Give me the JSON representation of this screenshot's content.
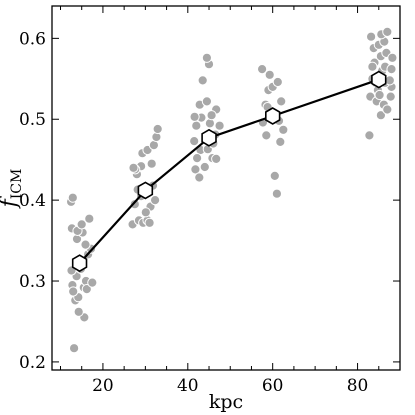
{
  "chart_data": {
    "type": "scatter",
    "title": "",
    "xlabel": "kpc",
    "ylabel_main": "f",
    "ylabel_sub": "ICM",
    "xlim": [
      8,
      90
    ],
    "ylim": [
      0.64,
      0.19
    ],
    "y_inverted": true,
    "x_ticks": [
      20,
      40,
      60,
      80
    ],
    "x_tick_labels": [
      "20",
      "40",
      "60",
      "80"
    ],
    "y_ticks": [
      0.2,
      0.3,
      0.4,
      0.5,
      0.6
    ],
    "y_tick_labels": [
      "0.2",
      "0.3",
      "0.4",
      "0.5",
      "0.6"
    ],
    "grid": false,
    "colors": {
      "points": "#a8a8a8",
      "line": "#000000",
      "marker_fill": "#ffffff"
    },
    "series": [
      {
        "kind": "scatter",
        "points": [
          [
            13.2,
            0.217
          ],
          [
            13.5,
            0.276
          ],
          [
            14.2,
            0.28
          ],
          [
            12.8,
            0.295
          ],
          [
            15.5,
            0.292
          ],
          [
            13.8,
            0.306
          ],
          [
            16.0,
            0.3
          ],
          [
            12.6,
            0.313
          ],
          [
            14.5,
            0.327
          ],
          [
            16.5,
            0.333
          ],
          [
            13.9,
            0.352
          ],
          [
            12.7,
            0.365
          ],
          [
            15.2,
            0.36
          ],
          [
            12.5,
            0.398
          ],
          [
            14.0,
            0.362
          ],
          [
            15.0,
            0.37
          ],
          [
            16.8,
            0.377
          ],
          [
            17.2,
            0.34
          ],
          [
            15.6,
            0.255
          ],
          [
            16.2,
            0.29
          ],
          [
            17.5,
            0.298
          ],
          [
            13.0,
            0.287
          ],
          [
            14.8,
            0.315
          ],
          [
            12.9,
            0.403
          ],
          [
            15.9,
            0.345
          ],
          [
            14.3,
            0.262
          ],
          [
            27.0,
            0.37
          ],
          [
            28.5,
            0.375
          ],
          [
            29.5,
            0.372
          ],
          [
            30.5,
            0.375
          ],
          [
            31.2,
            0.392
          ],
          [
            27.5,
            0.395
          ],
          [
            29.0,
            0.405
          ],
          [
            30.8,
            0.41
          ],
          [
            31.8,
            0.418
          ],
          [
            28.0,
            0.432
          ],
          [
            29.0,
            0.442
          ],
          [
            27.6,
            0.438
          ],
          [
            31.5,
            0.445
          ],
          [
            29.3,
            0.458
          ],
          [
            30.5,
            0.462
          ],
          [
            32.0,
            0.468
          ],
          [
            32.6,
            0.478
          ],
          [
            32.9,
            0.488
          ],
          [
            27.2,
            0.44
          ],
          [
            31.0,
            0.372
          ],
          [
            32.3,
            0.4
          ],
          [
            28.2,
            0.413
          ],
          [
            30.1,
            0.385
          ],
          [
            41.8,
            0.438
          ],
          [
            42.7,
            0.428
          ],
          [
            44.0,
            0.441
          ],
          [
            45.8,
            0.452
          ],
          [
            46.7,
            0.451
          ],
          [
            43.0,
            0.462
          ],
          [
            41.5,
            0.473
          ],
          [
            44.7,
            0.463
          ],
          [
            46.0,
            0.47
          ],
          [
            42.0,
            0.492
          ],
          [
            43.2,
            0.502
          ],
          [
            45.2,
            0.495
          ],
          [
            47.5,
            0.492
          ],
          [
            41.6,
            0.503
          ],
          [
            42.8,
            0.518
          ],
          [
            46.7,
            0.512
          ],
          [
            44.5,
            0.522
          ],
          [
            43.5,
            0.548
          ],
          [
            45.0,
            0.568
          ],
          [
            44.5,
            0.576
          ],
          [
            46.5,
            0.481
          ],
          [
            42.2,
            0.452
          ],
          [
            45.6,
            0.505
          ],
          [
            58.5,
            0.48
          ],
          [
            61.8,
            0.472
          ],
          [
            62.5,
            0.487
          ],
          [
            57.7,
            0.496
          ],
          [
            60.5,
            0.5
          ],
          [
            61.5,
            0.498
          ],
          [
            58.3,
            0.518
          ],
          [
            59.0,
            0.536
          ],
          [
            60.0,
            0.54
          ],
          [
            61.2,
            0.546
          ],
          [
            62.0,
            0.522
          ],
          [
            57.5,
            0.562
          ],
          [
            59.3,
            0.555
          ],
          [
            60.5,
            0.43
          ],
          [
            61.0,
            0.408
          ],
          [
            58.8,
            0.515
          ],
          [
            82.8,
            0.48
          ],
          [
            83.0,
            0.528
          ],
          [
            84.5,
            0.522
          ],
          [
            85.5,
            0.505
          ],
          [
            86.2,
            0.518
          ],
          [
            87.0,
            0.512
          ],
          [
            87.8,
            0.528
          ],
          [
            88.0,
            0.54
          ],
          [
            83.5,
            0.55
          ],
          [
            84.3,
            0.545
          ],
          [
            85.8,
            0.56
          ],
          [
            86.5,
            0.565
          ],
          [
            84.0,
            0.57
          ],
          [
            85.5,
            0.578
          ],
          [
            86.8,
            0.582
          ],
          [
            88.2,
            0.576
          ],
          [
            83.8,
            0.588
          ],
          [
            85.0,
            0.592
          ],
          [
            86.3,
            0.596
          ],
          [
            83.2,
            0.602
          ],
          [
            85.6,
            0.605
          ],
          [
            87.0,
            0.608
          ],
          [
            88.0,
            0.562
          ],
          [
            84.8,
            0.536
          ],
          [
            86.5,
            0.545
          ],
          [
            87.6,
            0.548
          ],
          [
            83.5,
            0.565
          ],
          [
            85.2,
            0.53
          ]
        ]
      },
      {
        "kind": "line",
        "x": [
          14.5,
          30,
          45,
          60,
          85
        ],
        "y": [
          0.322,
          0.412,
          0.477,
          0.504,
          0.549
        ]
      }
    ]
  }
}
